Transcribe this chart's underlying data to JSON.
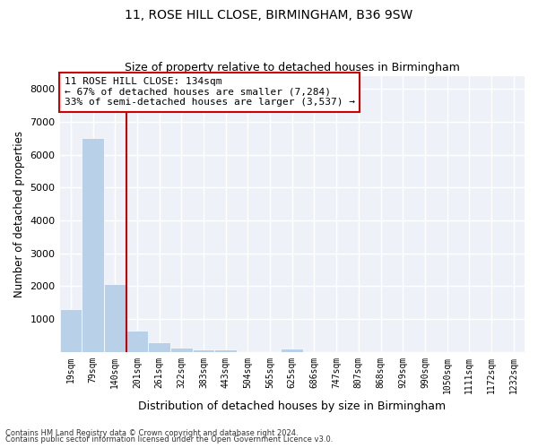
{
  "title_line1": "11, ROSE HILL CLOSE, BIRMINGHAM, B36 9SW",
  "title_line2": "Size of property relative to detached houses in Birmingham",
  "xlabel": "Distribution of detached houses by size in Birmingham",
  "ylabel": "Number of detached properties",
  "bin_labels": [
    "19sqm",
    "79sqm",
    "140sqm",
    "201sqm",
    "261sqm",
    "322sqm",
    "383sqm",
    "443sqm",
    "504sqm",
    "565sqm",
    "625sqm",
    "686sqm",
    "747sqm",
    "807sqm",
    "868sqm",
    "929sqm",
    "990sqm",
    "1050sqm",
    "1111sqm",
    "1172sqm",
    "1232sqm"
  ],
  "bar_values": [
    1300,
    6500,
    2050,
    650,
    280,
    130,
    80,
    60,
    0,
    0,
    95,
    0,
    0,
    0,
    0,
    0,
    0,
    0,
    0,
    0,
    0
  ],
  "bar_color": "#b8d0e8",
  "bar_edge_color": "#b8d0e8",
  "vline_color": "#cc0000",
  "vline_bin_index": 2,
  "annotation_text": "11 ROSE HILL CLOSE: 134sqm\n← 67% of detached houses are smaller (7,284)\n33% of semi-detached houses are larger (3,537) →",
  "annotation_box_color": "#ffffff",
  "annotation_box_edge": "#cc0000",
  "ylim": [
    0,
    8400
  ],
  "yticks": [
    0,
    1000,
    2000,
    3000,
    4000,
    5000,
    6000,
    7000,
    8000
  ],
  "background_color": "#eef2f8",
  "grid_color": "#ffffff",
  "footer_line1": "Contains HM Land Registry data © Crown copyright and database right 2024.",
  "footer_line2": "Contains public sector information licensed under the Open Government Licence v3.0."
}
